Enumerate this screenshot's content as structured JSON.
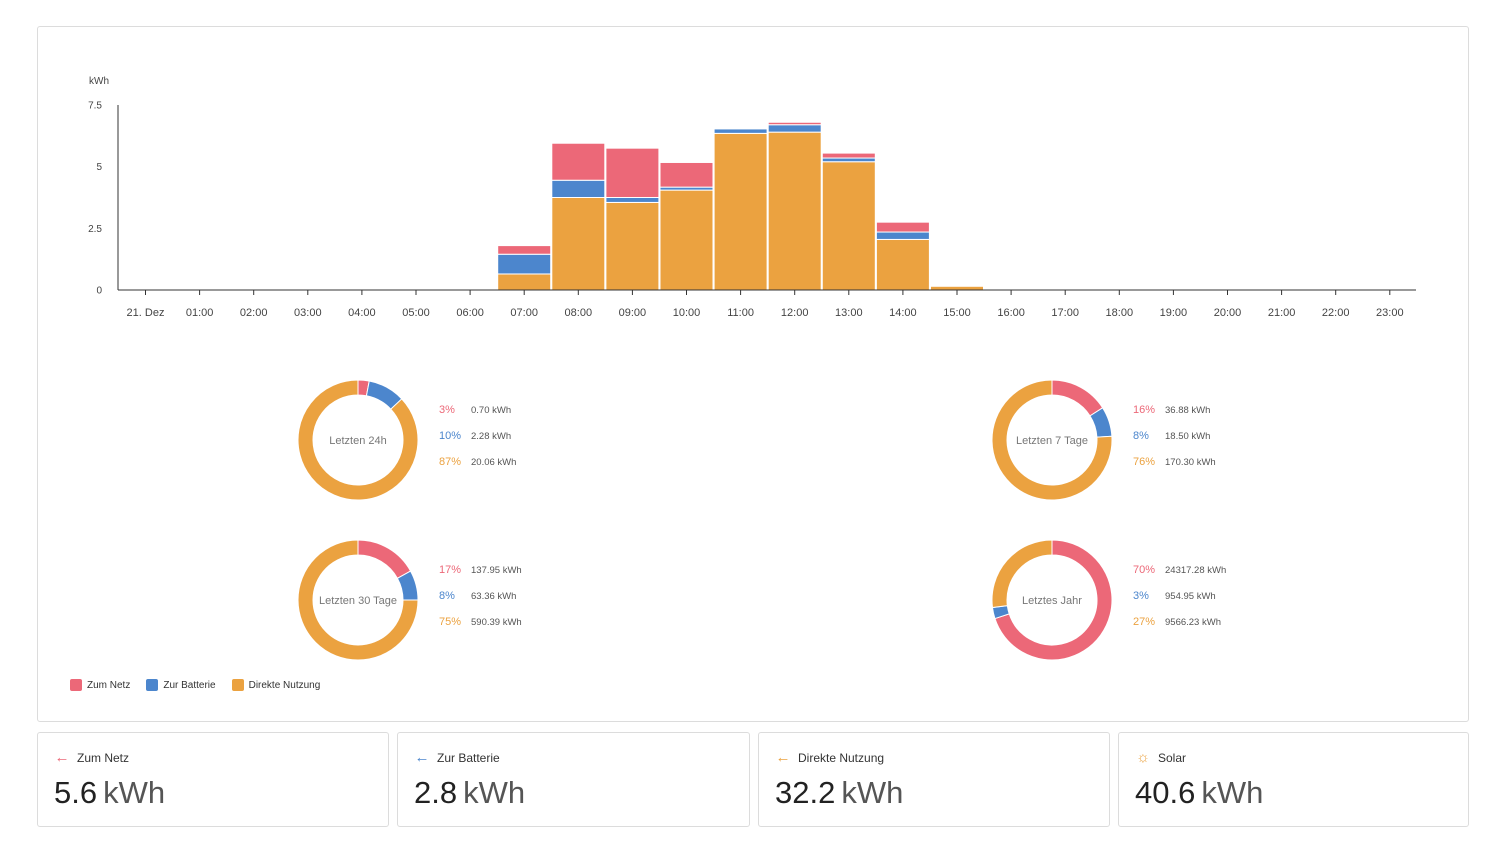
{
  "colors": {
    "netz": "#ec6878",
    "batterie": "#4c86cd",
    "direkt": "#eba240",
    "axis": "#333333",
    "text": "#444444"
  },
  "chart_data": [
    {
      "type": "bar",
      "stacked": true,
      "ylabel": "kWh",
      "ylim": [
        0,
        7.5
      ],
      "yticks": [
        "0",
        "2.5",
        "5",
        "7.5"
      ],
      "categories": [
        "21. Dez",
        "01:00",
        "02:00",
        "03:00",
        "04:00",
        "05:00",
        "06:00",
        "07:00",
        "08:00",
        "09:00",
        "10:00",
        "11:00",
        "12:00",
        "13:00",
        "14:00",
        "15:00",
        "16:00",
        "17:00",
        "18:00",
        "19:00",
        "20:00",
        "21:00",
        "22:00",
        "23:00"
      ],
      "series": [
        {
          "name": "Direkte Nutzung",
          "color": "#eba240",
          "values": [
            0,
            0,
            0,
            0,
            0,
            0,
            0,
            0.65,
            3.75,
            3.55,
            4.05,
            6.35,
            6.4,
            5.2,
            2.05,
            0.15,
            0,
            0,
            0,
            0,
            0,
            0,
            0,
            0
          ]
        },
        {
          "name": "Zur Batterie",
          "color": "#4c86cd",
          "values": [
            0,
            0,
            0,
            0,
            0,
            0,
            0,
            0.8,
            0.7,
            0.2,
            0.12,
            0.18,
            0.3,
            0.15,
            0.3,
            0,
            0,
            0,
            0,
            0,
            0,
            0,
            0,
            0
          ]
        },
        {
          "name": "Zum Netz",
          "color": "#ec6878",
          "values": [
            0,
            0,
            0,
            0,
            0,
            0,
            0,
            0.35,
            1.5,
            2.0,
            1.0,
            0,
            0.1,
            0.2,
            0.4,
            0,
            0,
            0,
            0,
            0,
            0,
            0,
            0,
            0
          ]
        }
      ],
      "legend_position": "bottom-left",
      "grid": false
    },
    {
      "type": "pie",
      "title": "Letzten 24h",
      "slices": [
        {
          "pct": "3%",
          "value": "0.70 kWh",
          "fraction": 0.03,
          "color": "#ec6878"
        },
        {
          "pct": "10%",
          "value": "2.28 kWh",
          "fraction": 0.1,
          "color": "#4c86cd"
        },
        {
          "pct": "87%",
          "value": "20.06 kWh",
          "fraction": 0.87,
          "color": "#eba240"
        }
      ]
    },
    {
      "type": "pie",
      "title": "Letzten 7 Tage",
      "slices": [
        {
          "pct": "16%",
          "value": "36.88 kWh",
          "fraction": 0.16,
          "color": "#ec6878"
        },
        {
          "pct": "8%",
          "value": "18.50 kWh",
          "fraction": 0.08,
          "color": "#4c86cd"
        },
        {
          "pct": "76%",
          "value": "170.30 kWh",
          "fraction": 0.76,
          "color": "#eba240"
        }
      ]
    },
    {
      "type": "pie",
      "title": "Letzten 30 Tage",
      "slices": [
        {
          "pct": "17%",
          "value": "137.95 kWh",
          "fraction": 0.17,
          "color": "#ec6878"
        },
        {
          "pct": "8%",
          "value": "63.36 kWh",
          "fraction": 0.08,
          "color": "#4c86cd"
        },
        {
          "pct": "75%",
          "value": "590.39 kWh",
          "fraction": 0.75,
          "color": "#eba240"
        }
      ]
    },
    {
      "type": "pie",
      "title": "Letztes Jahr",
      "slices": [
        {
          "pct": "70%",
          "value": "24317.28 kWh",
          "fraction": 0.7,
          "color": "#ec6878"
        },
        {
          "pct": "3%",
          "value": "954.95 kWh",
          "fraction": 0.03,
          "color": "#4c86cd"
        },
        {
          "pct": "27%",
          "value": "9566.23 kWh",
          "fraction": 0.27,
          "color": "#eba240"
        }
      ]
    }
  ],
  "legend": [
    {
      "label": "Zum Netz",
      "color": "#ec6878"
    },
    {
      "label": "Zur Batterie",
      "color": "#4c86cd"
    },
    {
      "label": "Direkte Nutzung",
      "color": "#eba240"
    }
  ],
  "stats": [
    {
      "label": "Zum Netz",
      "icon": "arrow-left-icon",
      "glyph": "←",
      "color": "#ec6878",
      "value": "5.6",
      "unit": "kWh"
    },
    {
      "label": "Zur Batterie",
      "icon": "arrow-left-icon",
      "glyph": "←",
      "color": "#4c86cd",
      "value": "2.8",
      "unit": "kWh"
    },
    {
      "label": "Direkte Nutzung",
      "icon": "arrow-left-icon",
      "glyph": "←",
      "color": "#eba240",
      "value": "32.2",
      "unit": "kWh"
    },
    {
      "label": "Solar",
      "icon": "sun-icon",
      "glyph": "☼",
      "color": "#eba240",
      "value": "40.6",
      "unit": "kWh"
    }
  ]
}
